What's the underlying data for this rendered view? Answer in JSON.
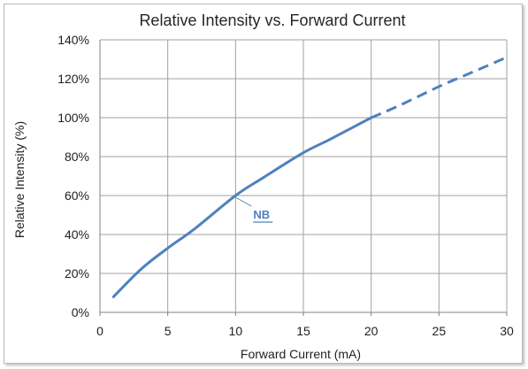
{
  "chart_data": {
    "type": "line",
    "title": "Relative Intensity vs. Forward Current",
    "xlabel": "Forward Current (mA)",
    "ylabel": "Relative Intensity (%)",
    "xlim": [
      0,
      30
    ],
    "ylim": [
      0,
      140
    ],
    "x_ticks": [
      "0",
      "5",
      "10",
      "15",
      "20",
      "25",
      "30"
    ],
    "y_ticks": [
      "0%",
      "20%",
      "40%",
      "60%",
      "80%",
      "100%",
      "120%",
      "140%"
    ],
    "grid": true,
    "series": [
      {
        "name": "NB",
        "solid": {
          "x": [
            1,
            3,
            5,
            7,
            10,
            12,
            15,
            17,
            20
          ],
          "y": [
            8,
            22,
            33,
            43,
            60,
            69,
            82,
            89,
            100
          ]
        },
        "dashed": {
          "x": [
            20,
            22,
            25,
            27,
            30
          ],
          "y": [
            100,
            106,
            116,
            122,
            131
          ]
        }
      }
    ],
    "annotations": [
      {
        "text": "NB",
        "x": 10,
        "y": 60
      }
    ],
    "colors": {
      "series": "#4f81bd",
      "grid": "#a0a0a0",
      "axis": "#808080"
    }
  }
}
